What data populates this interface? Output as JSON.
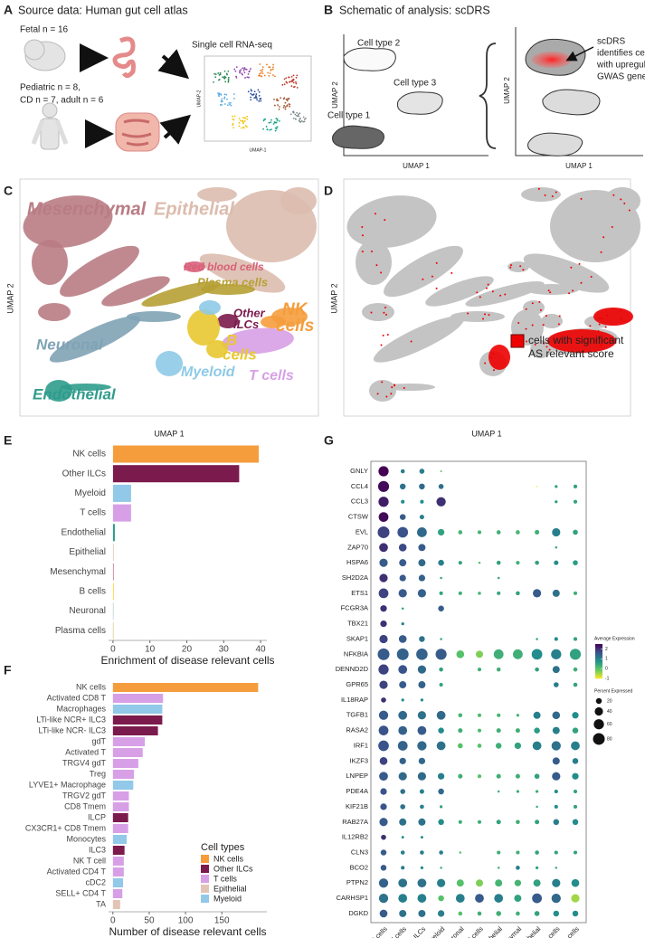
{
  "panel_a": {
    "letter": "A",
    "title": "Source data: Human gut cell atlas",
    "fetal": "Fetal n = 16",
    "pediatric": [
      "Pediatric n = 8,",
      "CD n = 7, adult n = 6"
    ],
    "method": "Single cell RNA-seq",
    "xlabel": "UMAP-1",
    "ylabel": "UMAP-2"
  },
  "panel_b": {
    "letter": "B",
    "title": "Schematic of analysis: scDRS",
    "cell_types": [
      "Cell type 2",
      "Cell type 3",
      "Cell type 1"
    ],
    "xlabel": "UMAP 1",
    "ylabel": "UMAP 2",
    "annotation": [
      "scDRS",
      "identifies cells",
      "with upregulated",
      "GWAS genes"
    ]
  },
  "panel_c": {
    "letter": "C",
    "xlabel": "UMAP 1",
    "ylabel": "UMAP 2",
    "clusters": [
      {
        "label": [
          "Mesenchymal"
        ],
        "color": "#b97c84"
      },
      {
        "label": [
          "Epithelial"
        ],
        "color": "#dcbcae"
      },
      {
        "label": [
          "Red blood cells"
        ],
        "color": "#d9607a"
      },
      {
        "label": [
          "Plasma cells"
        ],
        "color": "#b6a034"
      },
      {
        "label": [
          "Other",
          "ILCs"
        ],
        "color": "#7b1a4d"
      },
      {
        "label": [
          "NK",
          "cells"
        ],
        "color": "#f59d3d"
      },
      {
        "label": [
          "Neuronal"
        ],
        "color": "#7fa3b5"
      },
      {
        "label": [
          "B",
          "cells"
        ],
        "color": "#e8c830"
      },
      {
        "label": [
          "Myeloid"
        ],
        "color": "#8ecae6"
      },
      {
        "label": [
          "T cells"
        ],
        "color": "#d7a0e6"
      },
      {
        "label": [
          "Endothelial"
        ],
        "color": "#2f9c8c"
      }
    ]
  },
  "panel_d": {
    "letter": "D",
    "xlabel": "UMAP 1",
    "ylabel": "UMAP 2",
    "legend": [
      "cells with significant",
      "AS relevant score"
    ],
    "highlight_color": "#ee0000",
    "background_color": "#c4c4c4"
  },
  "chart_data": [
    {
      "type": "bar",
      "letter": "E",
      "xlabel": "Enrichment of disease relevant cells",
      "categories": [
        "NK cells",
        "Other ILCs",
        "Myeloid",
        "T cells",
        "Endothelial",
        "Epithelial",
        "Mesenchymal",
        "B cells",
        "Neuronal",
        "Plasma cells"
      ],
      "values": [
        39.5,
        34.2,
        4.9,
        4.9,
        0.5,
        0.2,
        0.2,
        0.2,
        0.1,
        0.1
      ],
      "colors": [
        "#f59d3d",
        "#7b1a4d",
        "#92c8e8",
        "#d7a0e6",
        "#2f9c8c",
        "#e2c4b6",
        "#b97c84",
        "#f0d030",
        "#7fa3b5",
        "#b6a034"
      ],
      "xlim": [
        -1.2,
        41.7
      ],
      "xticks": [
        0,
        10,
        20,
        30,
        40
      ]
    },
    {
      "type": "bar",
      "letter": "F",
      "xlabel": "Number of disease relevant cells",
      "categories": [
        "NK cells",
        "Activated CD8 T",
        "Macrophages",
        "LTi-like NCR+ ILC3",
        "LTi-like NCR- ILC3",
        "gdT",
        "Activated T",
        "TRGV4 gdT",
        "Treg",
        "LYVE1+ Macrophage",
        "TRGV2 gdT",
        "CD8 Tmem",
        "ILCP",
        "CX3CR1+ CD8 Tmem",
        "Monocytes",
        "ILC3",
        "NK T cell",
        "Activated CD4 T",
        "cDC2",
        "SELL+ CD4 T",
        "TA"
      ],
      "values": [
        200,
        69,
        68,
        68,
        62,
        44,
        41,
        35,
        29,
        28,
        22,
        22,
        21,
        21,
        19,
        16,
        15,
        15,
        14,
        13,
        10
      ],
      "colors": [
        "#f59d3d",
        "#d7a0e6",
        "#92c8e8",
        "#7b1a4d",
        "#7b1a4d",
        "#d7a0e6",
        "#d7a0e6",
        "#d7a0e6",
        "#d7a0e6",
        "#92c8e8",
        "#d7a0e6",
        "#d7a0e6",
        "#7b1a4d",
        "#d7a0e6",
        "#92c8e8",
        "#7b1a4d",
        "#d7a0e6",
        "#d7a0e6",
        "#92c8e8",
        "#d7a0e6",
        "#e2c4b6"
      ],
      "xlim": [
        -6,
        212
      ],
      "xticks": [
        0,
        50,
        100,
        150
      ],
      "legend": {
        "title": "Cell types",
        "items": [
          {
            "name": "NK cells",
            "color": "#f59d3d"
          },
          {
            "name": "Other ILCs",
            "color": "#7b1a4d"
          },
          {
            "name": "T cells",
            "color": "#d7a0e6"
          },
          {
            "name": "Epithelial",
            "color": "#e2c4b6"
          },
          {
            "name": "Myeloid",
            "color": "#92c8e8"
          }
        ]
      }
    },
    {
      "type": "dot",
      "letter": "G",
      "genes": [
        "GNLY",
        "CCL4",
        "CCL3",
        "CTSW",
        "EVL",
        "ZAP70",
        "HSPA6",
        "SH2D2A",
        "ETS1",
        "FCGR3A",
        "TBX21",
        "SKAP1",
        "NFKBIA",
        "DENND2D",
        "GPR65",
        "IL18RAP",
        "TGFB1",
        "RASA2",
        "IRF1",
        "IKZF3",
        "LNPEP",
        "PDE4A",
        "KIF21B",
        "RAB27A",
        "IL12RB2",
        "CLN3",
        "BCO2",
        "PTPN2",
        "CARHSP1",
        "DGKD"
      ],
      "categories": [
        "NK cells",
        "T cells",
        "Other ILCs",
        "Myeloid",
        "Neuronal",
        "Red blood cells",
        "Epithelial",
        "Mesenchymal",
        "Endothelial",
        "B cells",
        "Plasma cells"
      ],
      "expression": [
        [
          2.5,
          1,
          1,
          0,
          null,
          null,
          null,
          null,
          null,
          null,
          null
        ],
        [
          2.4,
          1.2,
          1.3,
          1.2,
          null,
          null,
          null,
          null,
          -1,
          0.5,
          0.5
        ],
        [
          2.2,
          0.8,
          0.8,
          2,
          null,
          null,
          null,
          null,
          null,
          0.5,
          0.5
        ],
        [
          2.4,
          1.5,
          1,
          null,
          null,
          null,
          null,
          null,
          null,
          null,
          null
        ],
        [
          1.8,
          1.6,
          1.3,
          0.5,
          0.2,
          0.2,
          0.3,
          0.2,
          0.3,
          1,
          0.5
        ],
        [
          2,
          1.7,
          1.5,
          null,
          null,
          null,
          null,
          null,
          null,
          0.5,
          null
        ],
        [
          1.5,
          1.5,
          1.3,
          1,
          0.5,
          0,
          0.5,
          0.3,
          0.5,
          0.8,
          0.6
        ],
        [
          2,
          1.5,
          1.4,
          0.5,
          null,
          null,
          0.5,
          null,
          null,
          null,
          null
        ],
        [
          1.8,
          1.5,
          1.4,
          0.5,
          0.3,
          0.2,
          0.4,
          0.5,
          1.5,
          1.2,
          0.3
        ],
        [
          2,
          0.5,
          null,
          1.5,
          null,
          null,
          null,
          null,
          null,
          null,
          null
        ],
        [
          2,
          1,
          null,
          null,
          null,
          null,
          null,
          null,
          null,
          null,
          null
        ],
        [
          1.8,
          1.5,
          1.2,
          0.5,
          null,
          null,
          null,
          null,
          0.5,
          0.8,
          0.5
        ],
        [
          1.5,
          1.4,
          1.4,
          1.5,
          0,
          -0.3,
          0.3,
          0.3,
          0.8,
          1,
          0.5
        ],
        [
          1.8,
          1.6,
          1.3,
          0.5,
          null,
          0.3,
          0.3,
          null,
          0.5,
          1.2,
          0.3
        ],
        [
          1.8,
          1.5,
          1.4,
          0.5,
          null,
          null,
          null,
          null,
          null,
          1,
          0.5
        ],
        [
          2,
          0.8,
          0.8,
          null,
          null,
          null,
          null,
          null,
          null,
          null,
          null
        ],
        [
          1.5,
          1.3,
          1.2,
          1.3,
          0.2,
          0.1,
          0.2,
          0.2,
          1,
          1.3,
          0.8
        ],
        [
          1.6,
          1.4,
          1.5,
          0.8,
          0.3,
          0.1,
          0.3,
          0.3,
          0.6,
          1,
          0.5
        ],
        [
          1.6,
          1.4,
          1.3,
          1.2,
          0,
          0,
          0.3,
          0.5,
          1,
          1.2,
          1
        ],
        [
          1.8,
          1.4,
          1.3,
          null,
          null,
          null,
          null,
          null,
          null,
          1.5,
          1
        ],
        [
          1.5,
          1.3,
          1.3,
          1,
          0.3,
          0,
          0.3,
          0.3,
          0.5,
          1.5,
          0.8
        ],
        [
          1.6,
          1.2,
          1,
          1.3,
          null,
          null,
          0.3,
          0.3,
          0.3,
          0.8,
          0.5
        ],
        [
          1.6,
          1.2,
          1,
          0.5,
          null,
          null,
          null,
          null,
          0.3,
          0.8,
          0.5
        ],
        [
          1.5,
          1.2,
          1.2,
          0.8,
          0.3,
          0.3,
          0.5,
          0.3,
          0.5,
          1,
          0.8
        ],
        [
          2,
          0.8,
          0.8,
          null,
          null,
          null,
          null,
          null,
          null,
          null,
          null
        ],
        [
          1.5,
          1,
          1,
          1,
          0,
          null,
          0.3,
          0.3,
          0.5,
          0.5,
          0.5
        ],
        [
          1.5,
          1,
          0.8,
          0.3,
          null,
          null,
          0.3,
          1,
          0.5,
          0.3,
          null
        ],
        [
          1.4,
          1.2,
          1.2,
          1,
          0,
          -0.3,
          0.2,
          0.2,
          0.5,
          1,
          0.8
        ],
        [
          1.2,
          1,
          1,
          0,
          1,
          1.5,
          1,
          0.5,
          1.5,
          1.3,
          -0.5
        ],
        [
          1.5,
          1.2,
          1.2,
          1,
          0,
          0.3,
          0.3,
          0.3,
          0.5,
          0.8,
          0.8
        ]
      ],
      "percent": [
        [
          60,
          10,
          15,
          2,
          null,
          null,
          null,
          null,
          null,
          null,
          null
        ],
        [
          70,
          20,
          20,
          15,
          null,
          null,
          null,
          null,
          1,
          5,
          8
        ],
        [
          60,
          8,
          8,
          50,
          null,
          null,
          null,
          null,
          null,
          5,
          8
        ],
        [
          55,
          20,
          12,
          null,
          null,
          null,
          null,
          null,
          null,
          null,
          null
        ],
        [
          80,
          65,
          55,
          25,
          10,
          8,
          10,
          10,
          12,
          40,
          15
        ],
        [
          45,
          35,
          30,
          null,
          null,
          null,
          null,
          null,
          null,
          3,
          null
        ],
        [
          40,
          30,
          30,
          20,
          8,
          3,
          10,
          8,
          10,
          12,
          15
        ],
        [
          40,
          25,
          25,
          3,
          null,
          null,
          3,
          null,
          null,
          null,
          null
        ],
        [
          55,
          40,
          40,
          8,
          8,
          6,
          8,
          10,
          40,
          30,
          8
        ],
        [
          25,
          3,
          null,
          20,
          null,
          null,
          null,
          null,
          null,
          null,
          null
        ],
        [
          25,
          5,
          null,
          null,
          null,
          null,
          null,
          null,
          null,
          null,
          null
        ],
        [
          40,
          35,
          20,
          3,
          null,
          null,
          null,
          null,
          3,
          8,
          8
        ],
        [
          80,
          80,
          75,
          70,
          35,
          30,
          55,
          55,
          65,
          60,
          70
        ],
        [
          60,
          45,
          40,
          10,
          null,
          8,
          10,
          null,
          10,
          30,
          10
        ],
        [
          40,
          30,
          30,
          8,
          null,
          null,
          null,
          null,
          null,
          15,
          10
        ],
        [
          15,
          5,
          5,
          null,
          null,
          null,
          null,
          null,
          null,
          null,
          null
        ],
        [
          50,
          45,
          40,
          45,
          10,
          8,
          8,
          5,
          30,
          35,
          25
        ],
        [
          55,
          45,
          45,
          20,
          12,
          8,
          12,
          12,
          20,
          30,
          20
        ],
        [
          65,
          55,
          50,
          45,
          15,
          10,
          20,
          25,
          45,
          50,
          45
        ],
        [
          35,
          25,
          25,
          null,
          null,
          null,
          null,
          null,
          null,
          30,
          20
        ],
        [
          45,
          40,
          40,
          25,
          12,
          8,
          12,
          12,
          15,
          40,
          25
        ],
        [
          25,
          15,
          12,
          20,
          null,
          null,
          3,
          5,
          5,
          8,
          8
        ],
        [
          25,
          15,
          10,
          5,
          null,
          null,
          null,
          null,
          3,
          8,
          8
        ],
        [
          40,
          30,
          30,
          20,
          8,
          8,
          12,
          10,
          12,
          20,
          20
        ],
        [
          15,
          4,
          4,
          null,
          null,
          null,
          null,
          null,
          null,
          null,
          null
        ],
        [
          20,
          10,
          10,
          10,
          3,
          null,
          8,
          8,
          10,
          8,
          8
        ],
        [
          20,
          8,
          5,
          3,
          null,
          null,
          3,
          10,
          5,
          3,
          null
        ],
        [
          50,
          45,
          45,
          40,
          30,
          30,
          30,
          25,
          30,
          40,
          35
        ],
        [
          50,
          45,
          45,
          20,
          45,
          45,
          45,
          30,
          55,
          50,
          40
        ],
        [
          35,
          30,
          30,
          25,
          10,
          10,
          15,
          10,
          15,
          20,
          20
        ]
      ],
      "color_title": "Average Expression",
      "color_lim": [
        -1,
        2.5
      ],
      "color_ticks": [
        2,
        1,
        0,
        -1
      ],
      "size_title": "Percent Expressed",
      "size_ticks": [
        20,
        40,
        60,
        80
      ]
    }
  ]
}
